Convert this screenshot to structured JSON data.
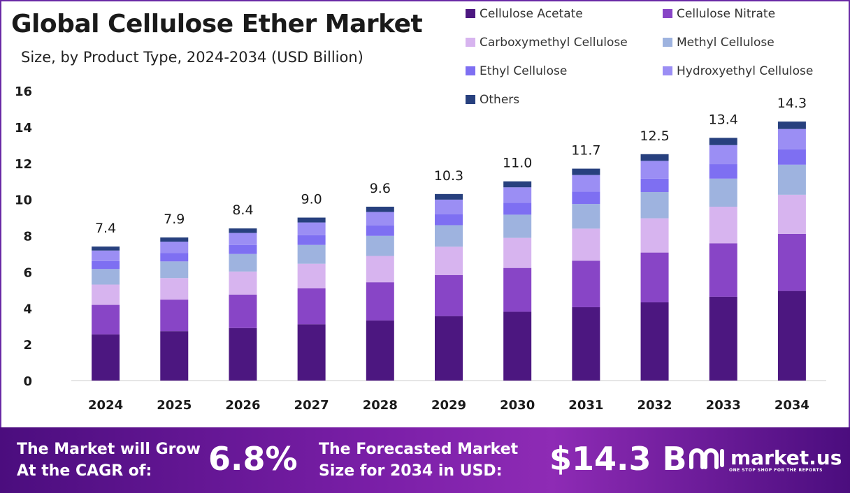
{
  "title": "Global Cellulose Ether Market",
  "subtitle": "Size, by Product Type, 2024-2034 (USD Billion)",
  "chart_data": {
    "type": "bar",
    "stacked": true,
    "categories": [
      "2024",
      "2025",
      "2026",
      "2027",
      "2028",
      "2029",
      "2030",
      "2031",
      "2032",
      "2033",
      "2034"
    ],
    "totals": [
      "7.4",
      "7.9",
      "8.4",
      "9.0",
      "9.6",
      "10.3",
      "11.0",
      "11.7",
      "12.5",
      "13.4",
      "14.3"
    ],
    "series": [
      {
        "name": "Cellulose Acetate",
        "color": "#4c1780",
        "values": [
          2.55,
          2.73,
          2.9,
          3.11,
          3.32,
          3.56,
          3.8,
          4.05,
          4.32,
          4.63,
          4.95
        ]
      },
      {
        "name": "Cellulose Nitrate",
        "color": "#8845c6",
        "values": [
          1.63,
          1.74,
          1.85,
          1.98,
          2.11,
          2.27,
          2.42,
          2.57,
          2.75,
          2.95,
          3.15
        ]
      },
      {
        "name": "Carboxymethyl Cellulose",
        "color": "#d7b4ef",
        "values": [
          1.12,
          1.19,
          1.27,
          1.36,
          1.45,
          1.56,
          1.66,
          1.77,
          1.89,
          2.02,
          2.16
        ]
      },
      {
        "name": "Methyl Cellulose",
        "color": "#9eb3df",
        "values": [
          0.86,
          0.92,
          0.97,
          1.04,
          1.11,
          1.19,
          1.28,
          1.36,
          1.45,
          1.55,
          1.66
        ]
      },
      {
        "name": "Ethyl Cellulose",
        "color": "#7e6ff2",
        "values": [
          0.44,
          0.47,
          0.5,
          0.54,
          0.57,
          0.61,
          0.65,
          0.69,
          0.74,
          0.8,
          0.85
        ]
      },
      {
        "name": "Hydroxyethyl Cellulose",
        "color": "#9b8ef4",
        "values": [
          0.58,
          0.62,
          0.66,
          0.7,
          0.75,
          0.8,
          0.86,
          0.91,
          0.98,
          1.05,
          1.12
        ]
      },
      {
        "name": "Others",
        "color": "#27407e",
        "values": [
          0.22,
          0.23,
          0.25,
          0.27,
          0.29,
          0.31,
          0.33,
          0.35,
          0.37,
          0.4,
          0.41
        ]
      }
    ],
    "ylim": [
      0,
      16
    ],
    "yticks": [
      0,
      2,
      4,
      6,
      8,
      10,
      12,
      14,
      16
    ],
    "grid": false,
    "legend_position": "top-right"
  },
  "footer": {
    "cagr_text_line1": "The Market will Grow",
    "cagr_text_line2": "At the CAGR of:",
    "cagr_value": "6.8%",
    "forecast_text_line1": "The Forecasted Market",
    "forecast_text_line2": "Size for 2034 in USD:",
    "forecast_value": "$14.3 B",
    "logo_name": "market.us",
    "logo_tagline": "ONE STOP SHOP FOR THE REPORTS"
  }
}
